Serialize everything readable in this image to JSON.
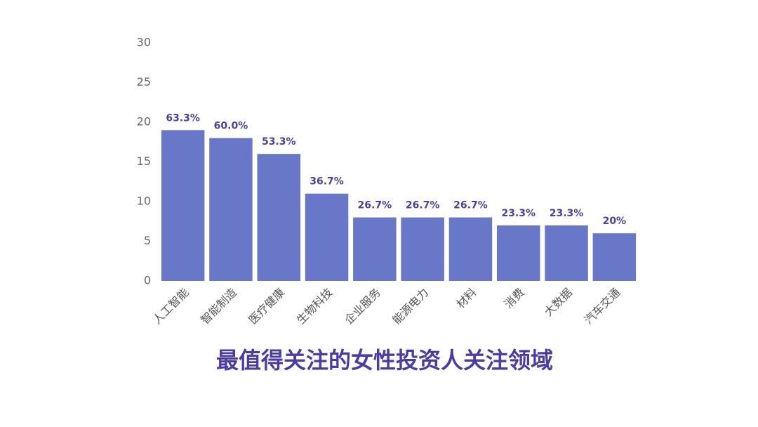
{
  "chart_data": {
    "type": "bar",
    "title": "最值得关注的女性投资人关注领域",
    "categories": [
      "人工智能",
      "智能制造",
      "医疗健康",
      "生物科技",
      "企业服务",
      "能源电力",
      "材料",
      "消费",
      "大数据",
      "汽车交通"
    ],
    "values": [
      19,
      18,
      16,
      11,
      8,
      8,
      8,
      7,
      7,
      6
    ],
    "value_labels": [
      "63.3%",
      "60.0%",
      "53.3%",
      "36.7%",
      "26.7%",
      "26.7%",
      "26.7%",
      "23.3%",
      "23.3%",
      "20%"
    ],
    "color": "#6877c7",
    "ylim": [
      0,
      30
    ],
    "yticks": [
      0,
      5,
      10,
      15,
      20,
      25,
      30
    ],
    "grid": false
  }
}
